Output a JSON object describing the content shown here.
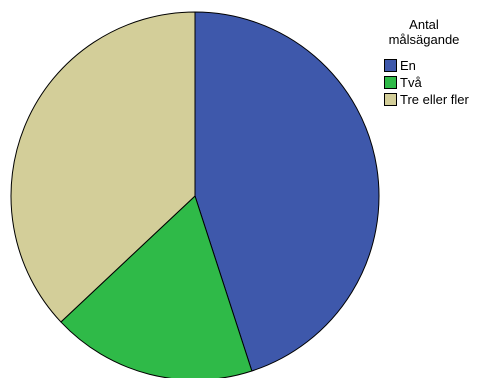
{
  "chart_data": {
    "type": "pie",
    "categories": [
      "En",
      "Två",
      "Tre eller fler"
    ],
    "values": [
      45,
      18,
      37
    ],
    "colors": [
      "#3e58ab",
      "#2fba48",
      "#d3ce99"
    ],
    "title": "",
    "legend": {
      "title_lines": [
        "Antal",
        "målsägande"
      ],
      "placement": "right"
    }
  }
}
